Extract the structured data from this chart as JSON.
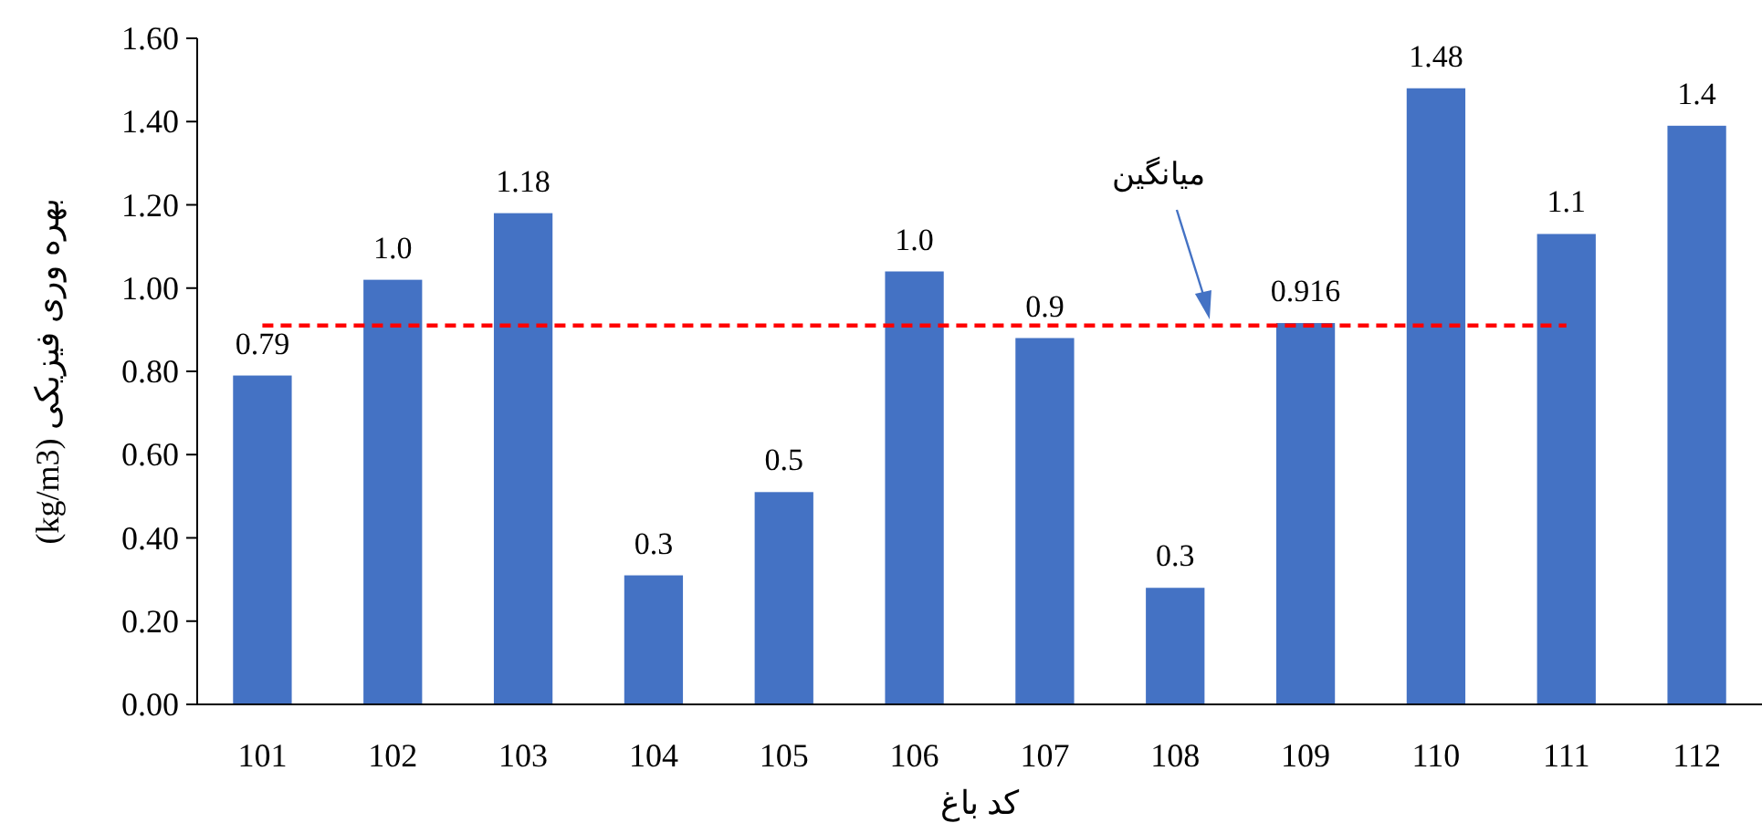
{
  "chart_data": {
    "type": "bar",
    "xlabel": "کد باغ",
    "ylabel": "بهره وری فیزیکی (kg/m3)",
    "categories": [
      "101",
      "102",
      "103",
      "104",
      "105",
      "106",
      "107",
      "108",
      "109",
      "110",
      "111",
      "112"
    ],
    "series": [
      {
        "color": "#4472c4",
        "values": [
          0.79,
          1.02,
          1.18,
          0.31,
          0.51,
          1.04,
          0.88,
          0.28,
          0.916,
          1.48,
          1.13,
          1.39
        ],
        "value_labels": [
          "0.79",
          "1.0",
          "1.18",
          "0.3",
          "0.5",
          "1.0",
          "0.9",
          "0.3",
          "0.916",
          "1.48",
          "1.1",
          "1.4"
        ]
      }
    ],
    "ylim": [
      0,
      1.6
    ],
    "yticks": [
      {
        "value": 0,
        "label": "0.00"
      },
      {
        "value": 0.2,
        "label": "0.20"
      },
      {
        "value": 0.4,
        "label": "0.40"
      },
      {
        "value": 0.6,
        "label": "0.60"
      },
      {
        "value": 0.8,
        "label": "0.80"
      },
      {
        "value": 1.0,
        "label": "1.00"
      },
      {
        "value": 1.2,
        "label": "1.20"
      },
      {
        "value": 1.4,
        "label": "1.40"
      },
      {
        "value": 1.6,
        "label": "1.60"
      }
    ],
    "ref_lines": [
      {
        "axis": "y",
        "value": 0.91,
        "color": "#ff0000",
        "line_style": "dashed"
      }
    ],
    "annotations": [
      "میانگین"
    ],
    "grid": false
  }
}
